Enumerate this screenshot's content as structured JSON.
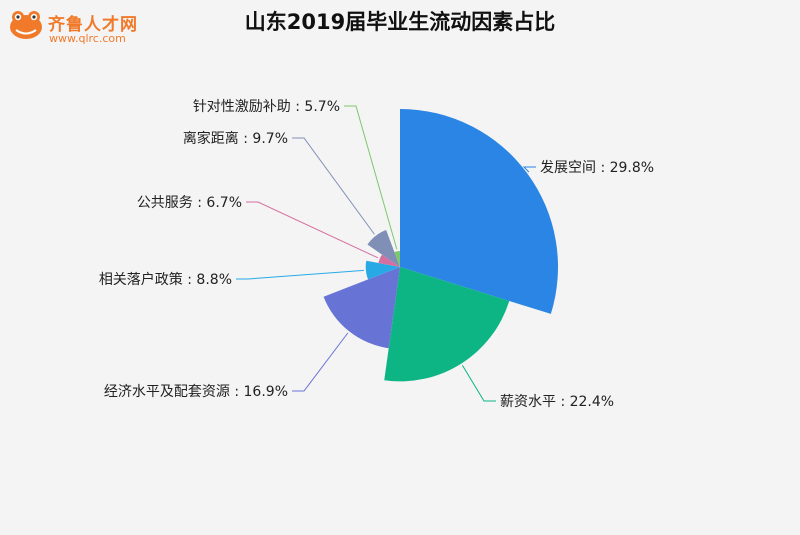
{
  "logo": {
    "name": "齐鲁人才网",
    "url": "www.qlrc.com"
  },
  "chart_data": {
    "type": "pie",
    "subtype": "rose",
    "title": "山东2019届毕业生流动因素占比",
    "unit": "%",
    "slices": [
      {
        "label": "发展空间",
        "value": 29.8,
        "color": "#2b85e4"
      },
      {
        "label": "薪资水平",
        "value": 22.4,
        "color": "#0db585"
      },
      {
        "label": "经济水平及配套资源",
        "value": 16.9,
        "color": "#6873d6"
      },
      {
        "label": "相关落户政策",
        "value": 8.8,
        "color": "#27a9e6"
      },
      {
        "label": "公共服务",
        "value": 6.7,
        "color": "#d56fa0"
      },
      {
        "label": "离家距离",
        "value": 9.7,
        "color": "#7f8fb5"
      },
      {
        "label": "针对性激励补助",
        "value": 5.7,
        "color": "#7cc86d"
      }
    ],
    "legend": "none",
    "data_labels": "outside-with-leader-lines"
  }
}
